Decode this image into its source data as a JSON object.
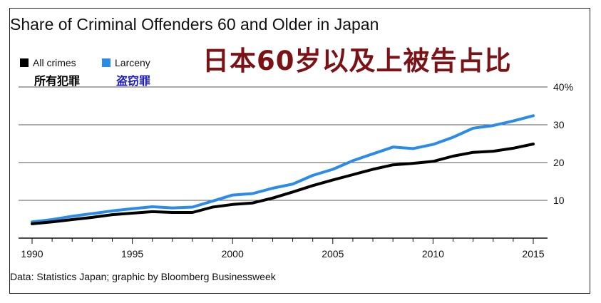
{
  "title": "Share of Criminal Offenders 60 and Older in Japan",
  "title_cn": "日本60岁以及上被告占比",
  "source": "Data: Statistics Japan; graphic by Bloomberg Businessweek",
  "legend": [
    {
      "label": "All crimes",
      "label_cn": "所有犯罪",
      "color": "#000000"
    },
    {
      "label": "Larceny",
      "label_cn": "盗窃罪",
      "color": "#2b8be8"
    }
  ],
  "colors": {
    "cn_title": "#7a1216",
    "cn_larceny_label": "#1a1ac8",
    "grid": "#555555"
  },
  "chart_data": {
    "type": "line",
    "title": "Share of Criminal Offenders 60 and Older in Japan",
    "x": [
      1990,
      1991,
      1992,
      1993,
      1994,
      1995,
      1996,
      1997,
      1998,
      1999,
      2000,
      2001,
      2002,
      2003,
      2004,
      2005,
      2006,
      2007,
      2008,
      2009,
      2010,
      2011,
      2012,
      2013,
      2014,
      2015
    ],
    "series": [
      {
        "name": "All crimes",
        "color": "#000000",
        "values": [
          3.8,
          4.3,
          4.9,
          5.5,
          6.2,
          6.6,
          7.0,
          6.8,
          6.8,
          8.2,
          8.9,
          9.3,
          10.6,
          12.2,
          13.9,
          15.4,
          16.8,
          18.2,
          19.4,
          19.8,
          20.3,
          21.7,
          22.7,
          23.0,
          23.8,
          24.9
        ]
      },
      {
        "name": "Larceny",
        "color": "#2b8be8",
        "values": [
          4.3,
          4.9,
          5.8,
          6.5,
          7.2,
          7.8,
          8.3,
          8.0,
          8.2,
          9.8,
          11.4,
          11.8,
          13.2,
          14.3,
          16.6,
          18.2,
          20.5,
          22.3,
          24.1,
          23.7,
          24.8,
          26.7,
          29.1,
          29.8,
          31.0,
          32.4
        ]
      }
    ],
    "xticks": [
      "1990",
      "1995",
      "2000",
      "2005",
      "2010",
      "2015"
    ],
    "yticks": [
      "10",
      "20",
      "30",
      "40%"
    ],
    "xlim": [
      1990,
      2015
    ],
    "ylim": [
      0,
      40
    ],
    "grid": "horizontal",
    "legend_position": "top-left",
    "y_axis_side": "right"
  }
}
